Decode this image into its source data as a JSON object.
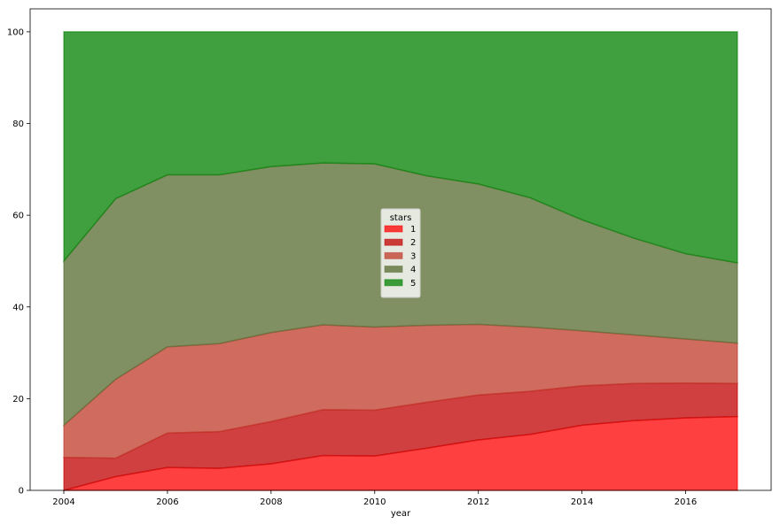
{
  "chart_data": {
    "type": "area",
    "stacked": true,
    "x": [
      2004,
      2005,
      2006,
      2007,
      2008,
      2009,
      2010,
      2011,
      2012,
      2013,
      2014,
      2015,
      2016,
      2017
    ],
    "series": [
      {
        "name": "1",
        "color": "#ff0000",
        "values": [
          0.0,
          3.0,
          5.0,
          4.8,
          5.8,
          7.6,
          7.5,
          9.2,
          11.0,
          12.2,
          14.2,
          15.2,
          15.8,
          16.1
        ]
      },
      {
        "name": "2",
        "color": "#c00000",
        "values": [
          7.2,
          4.0,
          7.5,
          8.0,
          9.2,
          10.0,
          10.0,
          10.0,
          9.8,
          9.4,
          8.6,
          8.1,
          7.6,
          7.2
        ]
      },
      {
        "name": "3",
        "color": "#c0392b",
        "values": [
          7.0,
          17.2,
          18.8,
          19.2,
          19.4,
          18.5,
          18.1,
          16.8,
          15.4,
          14.0,
          12.0,
          10.6,
          9.6,
          8.8
        ]
      },
      {
        "name": "4",
        "color": "#556b2f",
        "values": [
          35.8,
          39.4,
          37.5,
          36.8,
          36.2,
          35.3,
          35.6,
          32.6,
          30.6,
          28.2,
          24.2,
          21.1,
          18.6,
          17.5
        ]
      },
      {
        "name": "5",
        "color": "#008000",
        "values": [
          50.0,
          36.4,
          31.2,
          31.2,
          29.4,
          28.6,
          28.8,
          31.4,
          33.2,
          36.2,
          41.0,
          45.0,
          48.4,
          50.4
        ]
      }
    ],
    "xlabel": "year",
    "ylabel": "",
    "xlim": [
      2003.35,
      2017.65
    ],
    "ylim": [
      0,
      105
    ],
    "xticks": [
      2004,
      2006,
      2008,
      2010,
      2012,
      2014,
      2016
    ],
    "yticks": [
      0,
      20,
      40,
      60,
      80,
      100
    ],
    "legend": {
      "title": "stars",
      "position": "center"
    },
    "grid": false
  }
}
